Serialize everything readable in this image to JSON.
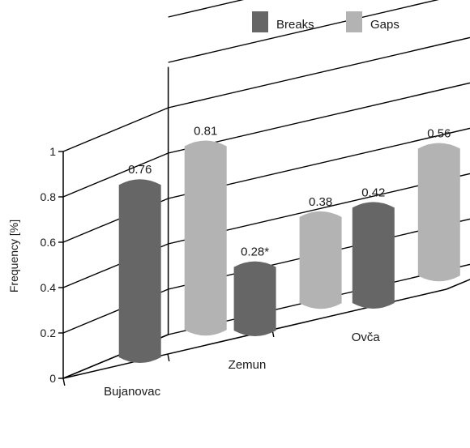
{
  "chart_data": {
    "type": "bar",
    "projection": "3d",
    "title": "",
    "ylabel": "Frequency [%]",
    "xlabel": "",
    "ylim": [
      0,
      1
    ],
    "yticks": [
      "0",
      "0.2",
      "0.4",
      "0.6",
      "0.8",
      "1"
    ],
    "ytick_values": [
      0,
      0.2,
      0.4,
      0.6,
      0.8,
      1
    ],
    "grid": true,
    "legend_position": "top",
    "categories": [
      "Bujanovac",
      "Zemun",
      "Ovča"
    ],
    "depth_labels": [
      "Breaks",
      "Gaps"
    ],
    "series": [
      {
        "name": "Breaks",
        "color": "#666666",
        "values": [
          0.76,
          0.28,
          0.42
        ],
        "labels": [
          "0.76",
          "0.28*",
          "0.42"
        ]
      },
      {
        "name": "Gaps",
        "color": "#b3b3b3",
        "values": [
          0.81,
          0.38,
          0.56
        ],
        "labels": [
          "0.81",
          "0.38",
          "0.56"
        ]
      }
    ]
  }
}
